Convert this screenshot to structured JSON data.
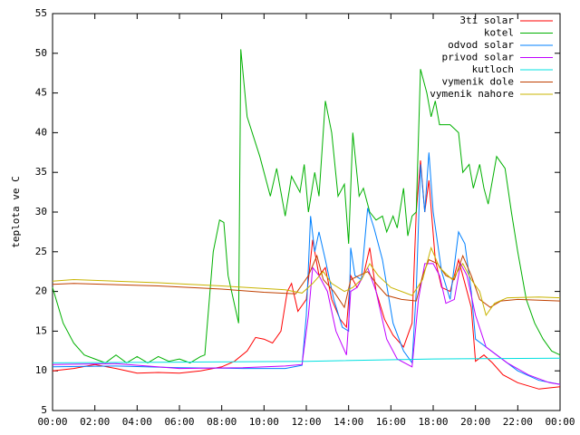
{
  "chart_data": {
    "type": "line",
    "y_label": "teplota ve C",
    "xlim": [
      0,
      24
    ],
    "ylim": [
      5,
      55
    ],
    "xticks": [
      {
        "value": 0,
        "label": "00:00"
      },
      {
        "value": 2,
        "label": "02:00"
      },
      {
        "value": 4,
        "label": "04:00"
      },
      {
        "value": 6,
        "label": "06:00"
      },
      {
        "value": 8,
        "label": "08:00"
      },
      {
        "value": 10,
        "label": "10:00"
      },
      {
        "value": 12,
        "label": "12:00"
      },
      {
        "value": 14,
        "label": "14:00"
      },
      {
        "value": 16,
        "label": "16:00"
      },
      {
        "value": 18,
        "label": "18:00"
      },
      {
        "value": 20,
        "label": "20:00"
      },
      {
        "value": 22,
        "label": "22:00"
      },
      {
        "value": 24,
        "label": "00:00"
      }
    ],
    "yticks": [
      5,
      10,
      15,
      20,
      25,
      30,
      35,
      40,
      45,
      50,
      55
    ],
    "grid": false,
    "legend": "top-right",
    "series": [
      {
        "name": "3ti solar",
        "color": "#ff0000",
        "x": [
          0,
          1,
          2,
          3,
          4,
          5,
          6,
          7,
          8,
          8.6,
          9.2,
          9.6,
          10,
          10.4,
          10.8,
          11.1,
          11.3,
          11.6,
          12,
          12.3,
          12.6,
          12.9,
          13.2,
          13.6,
          13.9,
          14.1,
          14.4,
          14.7,
          15,
          15.3,
          15.7,
          16.1,
          16.6,
          17,
          17.2,
          17.4,
          17.6,
          17.8,
          18.1,
          18.4,
          18.8,
          19.2,
          19.5,
          19.8,
          20,
          20.4,
          20.8,
          21.3,
          22,
          23,
          24
        ],
        "values": [
          10,
          10.3,
          10.8,
          10.3,
          9.7,
          9.8,
          9.7,
          10,
          10.5,
          11.2,
          12.5,
          14.2,
          14,
          13.5,
          15,
          20,
          21,
          17.5,
          19,
          26.5,
          22,
          23,
          19,
          16.5,
          15.5,
          22,
          20.5,
          22,
          25.5,
          20,
          16.5,
          14.5,
          13,
          16,
          30,
          36.5,
          30,
          34,
          24,
          20.5,
          20,
          24,
          21,
          18,
          11.2,
          12,
          11,
          9.5,
          8.5,
          7.7,
          8
        ]
      },
      {
        "name": "kotel",
        "color": "#00b000",
        "x": [
          0,
          0.5,
          1,
          1.5,
          2,
          2.5,
          3,
          3.5,
          4,
          4.5,
          5,
          5.5,
          6,
          6.5,
          7,
          7.2,
          7.6,
          7.9,
          8.1,
          8.3,
          8.8,
          8.9,
          9.2,
          9.8,
          10.3,
          10.6,
          11,
          11.3,
          11.7,
          11.9,
          12.1,
          12.4,
          12.6,
          12.9,
          13.2,
          13.5,
          13.8,
          14,
          14.2,
          14.5,
          14.7,
          15,
          15.3,
          15.6,
          15.8,
          16.1,
          16.3,
          16.6,
          16.8,
          17,
          17.2,
          17.4,
          17.7,
          17.9,
          18.1,
          18.3,
          18.8,
          19.2,
          19.4,
          19.7,
          19.9,
          20.2,
          20.4,
          20.6,
          21,
          21.4,
          21.7,
          22,
          22.4,
          22.8,
          23.2,
          23.6,
          24
        ],
        "values": [
          20.5,
          16,
          13.5,
          12,
          11.5,
          11,
          12,
          11,
          11.8,
          11,
          11.8,
          11.2,
          11.5,
          11,
          11.8,
          12,
          25,
          29,
          28.7,
          22,
          16,
          50.5,
          42,
          37,
          32,
          35.5,
          29.5,
          34.5,
          32.5,
          36,
          30,
          35,
          32,
          44,
          40,
          32,
          33.5,
          26,
          40,
          32,
          33,
          30,
          29,
          29.5,
          27.5,
          29.5,
          28,
          33,
          27,
          29.5,
          30,
          48,
          45,
          42,
          44,
          41,
          41,
          40,
          35,
          36,
          33,
          36,
          33,
          31,
          37,
          35.5,
          30,
          25,
          19,
          16,
          14,
          12.5,
          12
        ]
      },
      {
        "name": "odvod solar",
        "color": "#0080ff",
        "x": [
          0,
          3,
          6,
          9,
          11,
          11.8,
          12,
          12.2,
          12.4,
          12.6,
          12.9,
          13.3,
          13.7,
          14,
          14.1,
          14.3,
          14.6,
          14.9,
          15.2,
          15.6,
          16.1,
          16.6,
          17,
          17.2,
          17.4,
          17.6,
          17.8,
          18,
          18.4,
          18.8,
          19.2,
          19.5,
          19.8,
          20,
          20.5,
          21,
          22,
          23,
          24
        ],
        "values": [
          10.5,
          10.6,
          10.4,
          10.3,
          10.3,
          10.7,
          17,
          29.5,
          25,
          27.5,
          24,
          19,
          15.5,
          15,
          25.5,
          22,
          21.5,
          30.5,
          28,
          24,
          16,
          12.5,
          11,
          20,
          36,
          30,
          37.5,
          30,
          22.5,
          19,
          27.5,
          26,
          20,
          14,
          13,
          12,
          10,
          8.8,
          8.3
        ]
      },
      {
        "name": "privod solar",
        "color": "#c000ff",
        "x": [
          0,
          3,
          6,
          9,
          11,
          11.8,
          12.1,
          12.3,
          12.6,
          13,
          13.4,
          13.9,
          14.1,
          14.4,
          14.9,
          15.3,
          15.8,
          16.3,
          17,
          17.3,
          17.6,
          18,
          18.3,
          18.6,
          19,
          19.3,
          19.6,
          20,
          20.5,
          21.5,
          22.5,
          23.5,
          24
        ],
        "values": [
          10.8,
          10.9,
          10.3,
          10.4,
          10.6,
          10.8,
          17,
          23,
          22,
          20,
          15,
          12,
          20,
          20.5,
          23,
          20,
          14,
          11.5,
          10.5,
          19,
          23.5,
          23.5,
          22,
          18.5,
          19,
          23.5,
          22,
          17,
          13,
          11,
          9.5,
          8.5,
          8.3
        ]
      },
      {
        "name": "kutloch",
        "color": "#00e0e0",
        "x": [
          0,
          6,
          12,
          18,
          24
        ],
        "values": [
          11,
          11.1,
          11.2,
          11.5,
          11.6
        ]
      },
      {
        "name": "vymenik dole",
        "color": "#c04000",
        "x": [
          0,
          1,
          5,
          8,
          10,
          11.5,
          12.1,
          12.5,
          12.8,
          13.3,
          13.8,
          14.1,
          14.5,
          14.9,
          15.3,
          15.8,
          16.5,
          17.2,
          17.5,
          17.8,
          18.2,
          18.6,
          19,
          19.4,
          19.8,
          20.2,
          20.7,
          21.2,
          22,
          24
        ],
        "values": [
          20.9,
          21,
          20.7,
          20.3,
          19.9,
          19.7,
          22,
          24.5,
          21.5,
          20,
          18,
          21.5,
          22,
          22.5,
          21,
          19.5,
          19,
          18.8,
          22,
          24,
          23.5,
          22,
          21.5,
          24.5,
          22,
          19,
          18,
          18.8,
          19,
          18.8
        ]
      },
      {
        "name": "vymenik nahore",
        "color": "#c8b400",
        "x": [
          0,
          1,
          5,
          8,
          11,
          11.8,
          12.3,
          12.8,
          13.2,
          13.8,
          14.2,
          14.6,
          15,
          15.4,
          16,
          17,
          17.5,
          17.9,
          18.3,
          18.9,
          19.4,
          19.8,
          20.2,
          20.5,
          20.9,
          21.5,
          23,
          24
        ],
        "values": [
          21.3,
          21.5,
          21.1,
          20.7,
          20.2,
          19.8,
          21,
          22.5,
          21,
          20,
          20.5,
          21.5,
          23.5,
          22,
          20.5,
          19.5,
          21.5,
          25.5,
          23,
          21.5,
          23.5,
          21.5,
          20,
          17,
          18.5,
          19.2,
          19.3,
          19.2
        ]
      }
    ]
  }
}
